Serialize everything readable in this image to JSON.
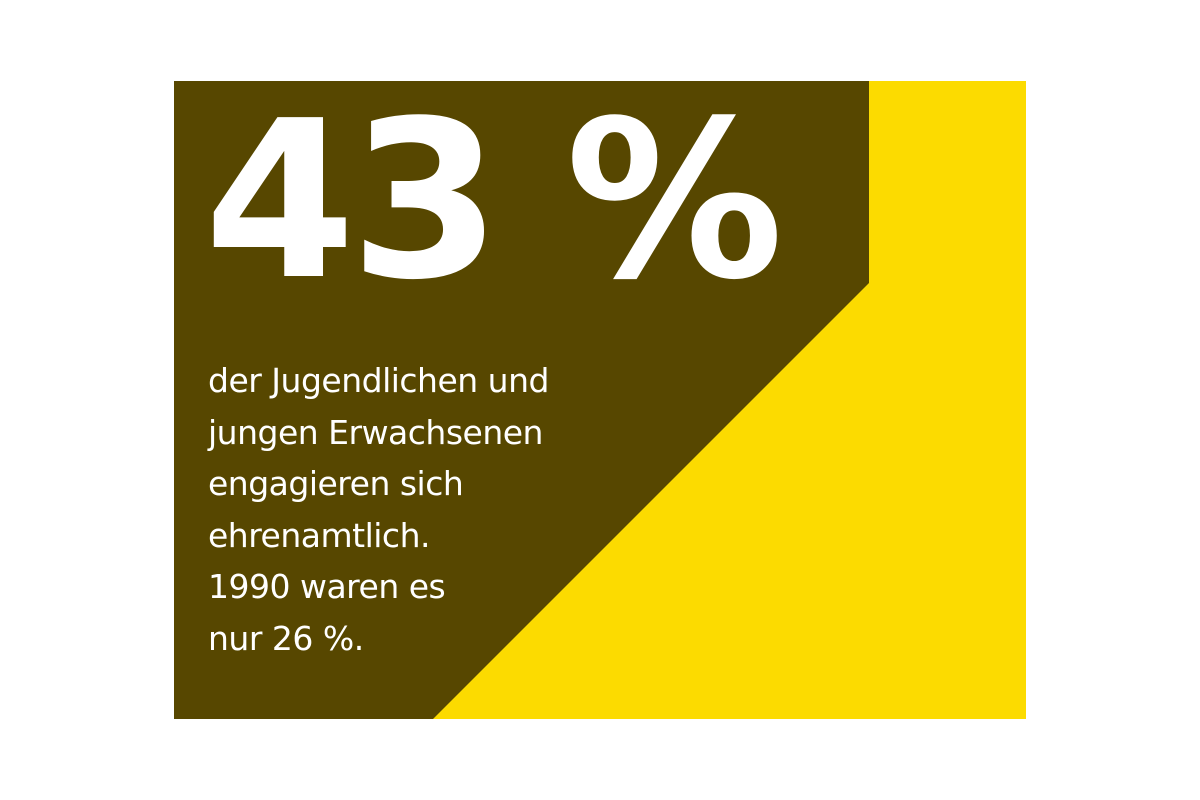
{
  "colors": {
    "dark_olive": "#574700",
    "yellow": "#fcdb00",
    "text": "#ffffff",
    "page_background": "#ffffff"
  },
  "stat": {
    "value": "43 %",
    "description_lines": [
      "der Jugendlichen und",
      "jungen Erwachsenen",
      "engagieren sich",
      "ehrenamtlich.",
      "1990 waren es",
      "nur 26 %."
    ]
  }
}
